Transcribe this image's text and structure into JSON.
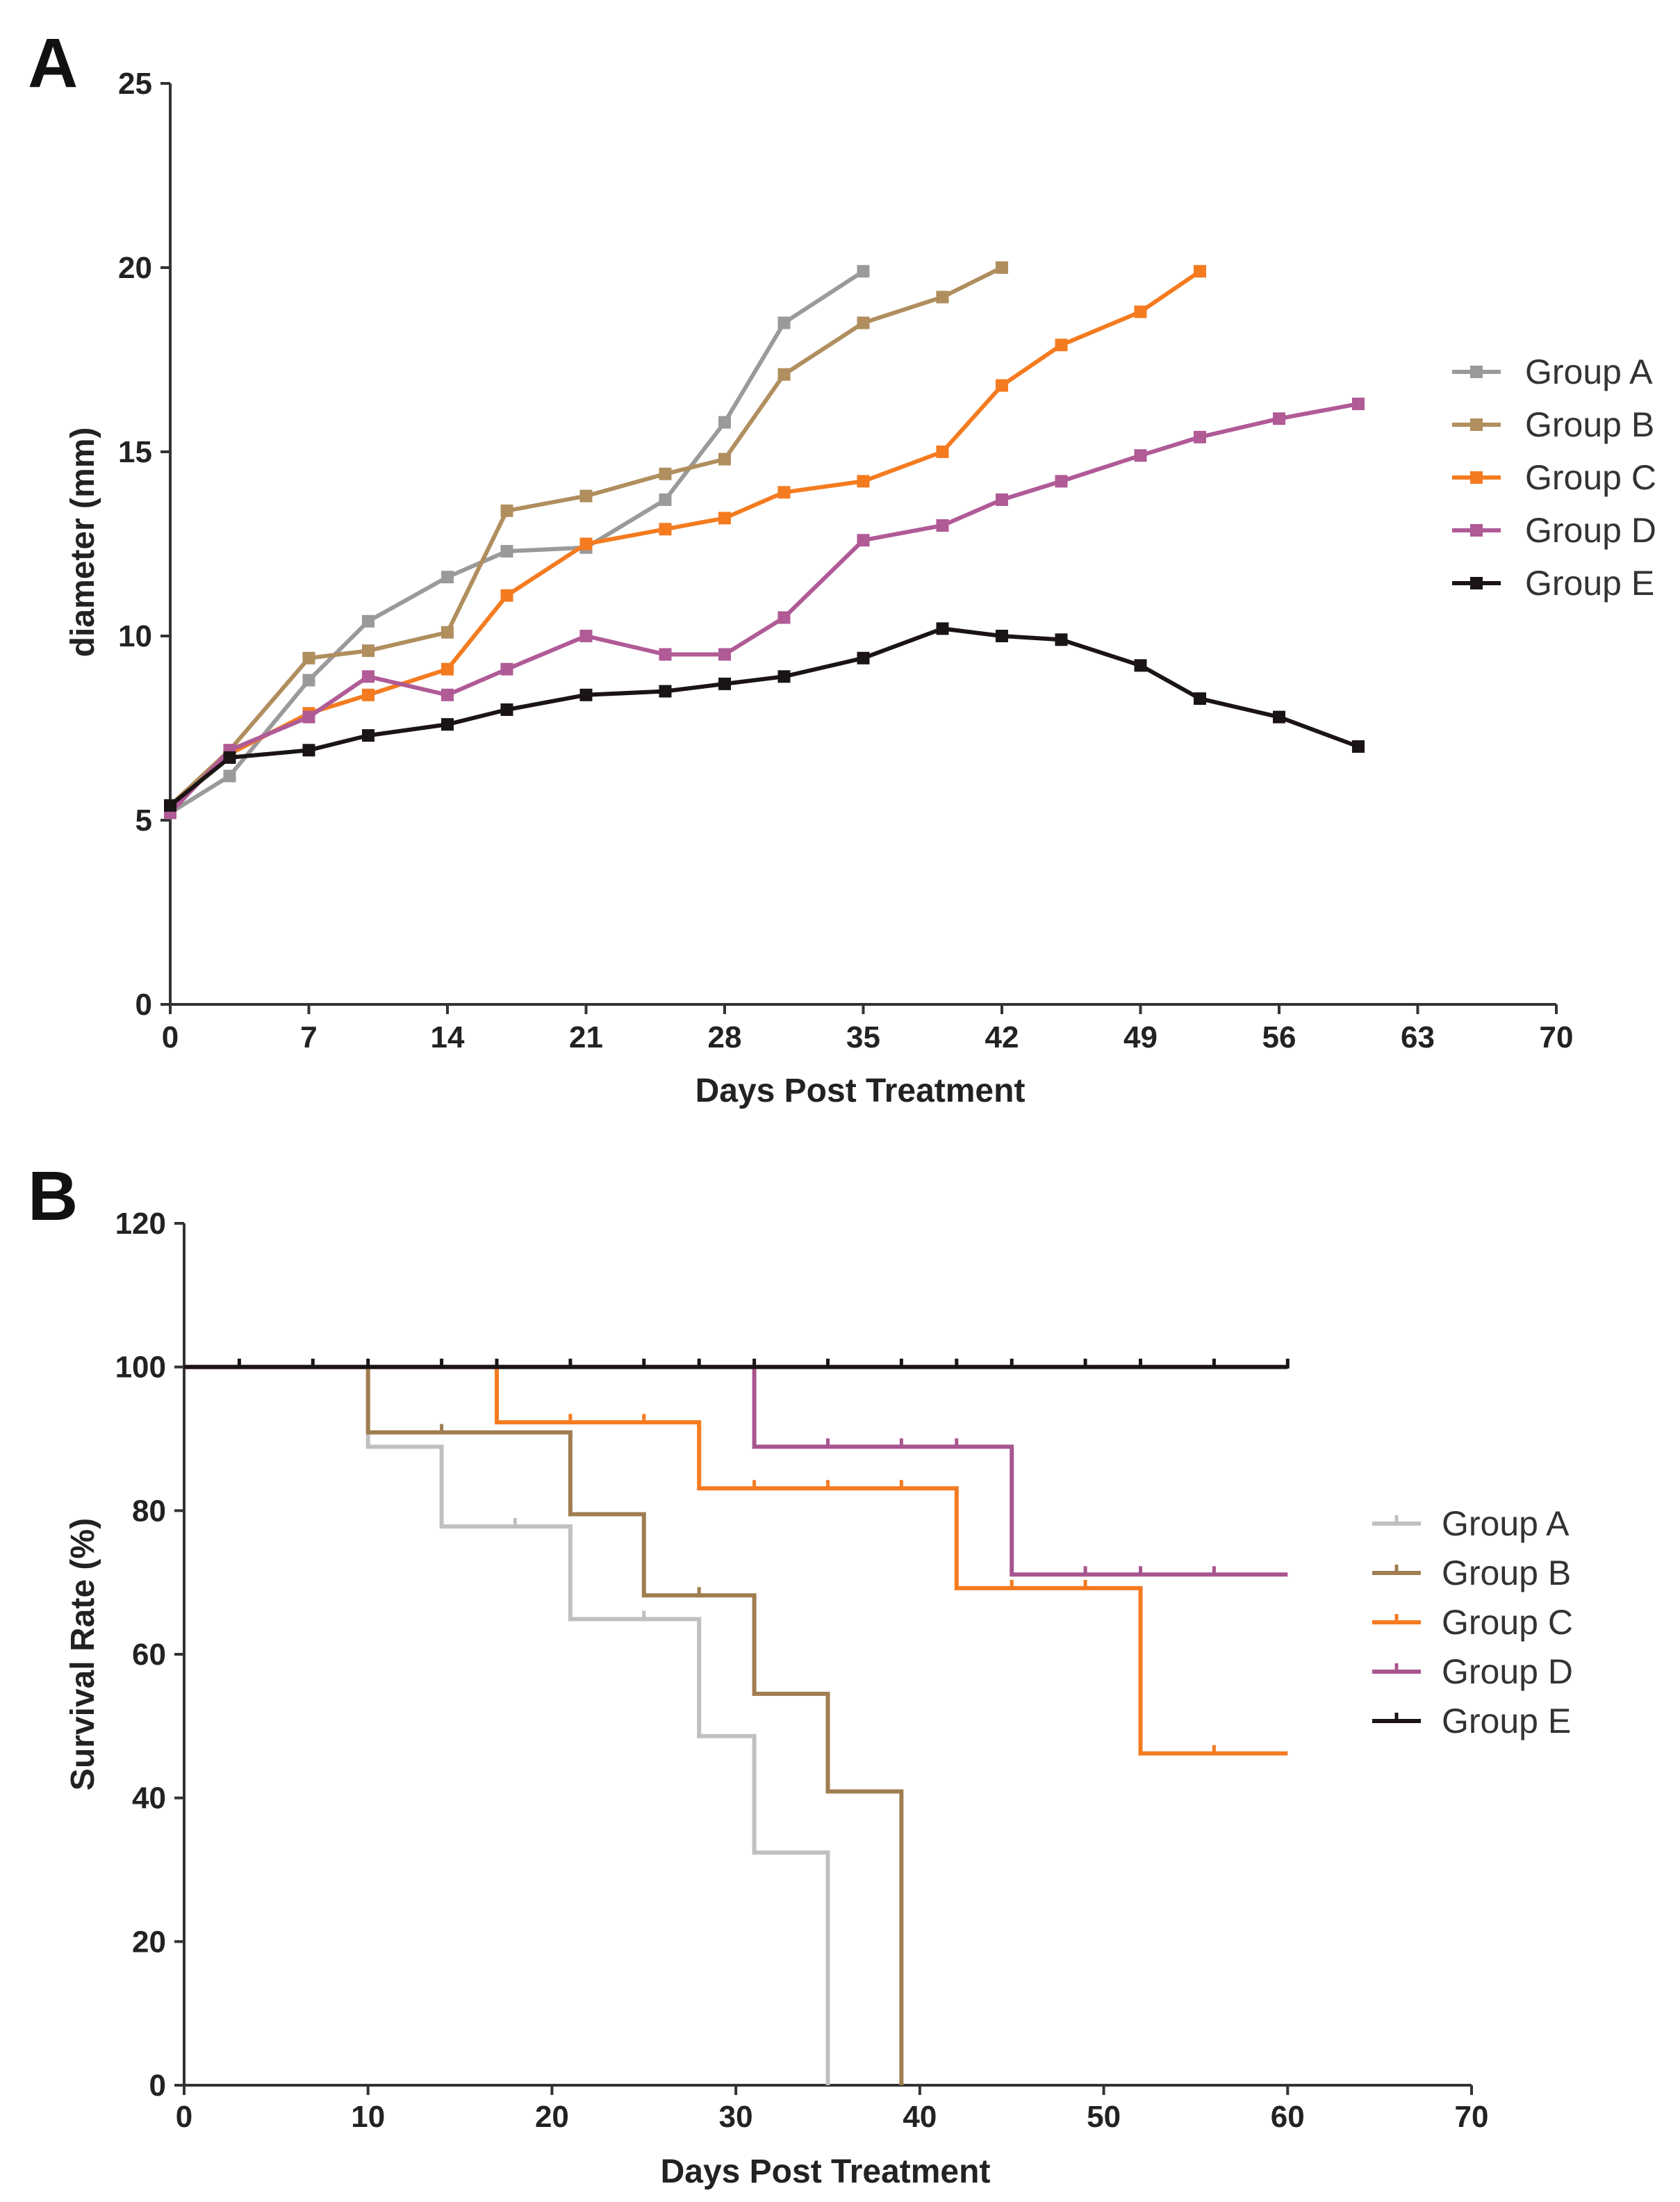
{
  "chart_data": [
    {
      "panel": "A",
      "type": "line",
      "xlabel": "Days Post Treatment",
      "ylabel": "diameter (mm)",
      "xlim": [
        0,
        70
      ],
      "ylim": [
        0,
        25
      ],
      "xticks": [
        "0",
        "7",
        "14",
        "21",
        "28",
        "35",
        "42",
        "49",
        "56",
        "63",
        "70"
      ],
      "yticks": [
        "0",
        "5",
        "10",
        "15",
        "20",
        "25"
      ],
      "legend_position": "right",
      "series": [
        {
          "name": "Group A",
          "color": "#9a9a9a",
          "marker": "square",
          "x": [
            0,
            3,
            7,
            10,
            14,
            17,
            21,
            25,
            28,
            31,
            35
          ],
          "y": [
            5.2,
            6.2,
            8.8,
            10.4,
            11.6,
            12.3,
            12.4,
            13.7,
            15.8,
            18.5,
            19.9
          ]
        },
        {
          "name": "Group B",
          "color": "#b08e5e",
          "marker": "square",
          "x": [
            0,
            3,
            7,
            10,
            14,
            17,
            21,
            25,
            28,
            31,
            35,
            39,
            42
          ],
          "y": [
            5.4,
            6.9,
            9.4,
            9.6,
            10.1,
            13.4,
            13.8,
            14.4,
            14.8,
            17.1,
            18.5,
            19.2,
            20.0
          ]
        },
        {
          "name": "Group C",
          "color": "#f47b20",
          "marker": "square",
          "x": [
            0,
            3,
            7,
            10,
            14,
            17,
            21,
            25,
            28,
            31,
            35,
            39,
            42,
            45,
            49,
            52
          ],
          "y": [
            5.3,
            6.8,
            7.9,
            8.4,
            9.1,
            11.1,
            12.5,
            12.9,
            13.2,
            13.9,
            14.2,
            15.0,
            16.8,
            17.9,
            18.8,
            19.9
          ]
        },
        {
          "name": "Group D",
          "color": "#b05a96",
          "marker": "square",
          "x": [
            0,
            3,
            7,
            10,
            14,
            17,
            21,
            25,
            28,
            31,
            35,
            39,
            42,
            45,
            49,
            52,
            56,
            60
          ],
          "y": [
            5.2,
            6.9,
            7.8,
            8.9,
            8.4,
            9.1,
            10.0,
            9.5,
            9.5,
            10.5,
            12.6,
            13.0,
            13.7,
            14.2,
            14.9,
            15.4,
            15.9,
            16.3
          ]
        },
        {
          "name": "Group E",
          "color": "#1a1414",
          "marker": "square",
          "x": [
            0,
            3,
            7,
            10,
            14,
            17,
            21,
            25,
            28,
            31,
            35,
            39,
            42,
            45,
            49,
            52,
            56,
            60
          ],
          "y": [
            5.4,
            6.7,
            6.9,
            7.3,
            7.6,
            8.0,
            8.4,
            8.5,
            8.7,
            8.9,
            9.4,
            10.2,
            10.0,
            9.9,
            9.2,
            8.3,
            7.8,
            7.0
          ]
        }
      ]
    },
    {
      "panel": "B",
      "type": "step",
      "xlabel": "Days Post Treatment",
      "ylabel": "Survival Rate (%)",
      "xlim": [
        0,
        70
      ],
      "ylim": [
        0,
        120
      ],
      "xticks": [
        "0",
        "10",
        "20",
        "30",
        "40",
        "50",
        "60",
        "70"
      ],
      "yticks": [
        "0",
        "20",
        "40",
        "60",
        "80",
        "100",
        "120"
      ],
      "legend_position": "right",
      "series": [
        {
          "name": "Group A",
          "color": "#c0c0c0",
          "x": [
            0,
            10,
            14,
            21,
            28,
            31,
            35
          ],
          "y": [
            100,
            88.9,
            77.8,
            64.9,
            48.6,
            32.4,
            0
          ],
          "censored": [
            [
              18,
              77.8
            ],
            [
              25,
              64.9
            ]
          ]
        },
        {
          "name": "Group B",
          "color": "#a07d50",
          "x": [
            0,
            10,
            21,
            25,
            31,
            35,
            39
          ],
          "y": [
            100,
            90.9,
            79.5,
            68.2,
            54.5,
            40.9,
            0
          ],
          "censored": [
            [
              14,
              90.9
            ],
            [
              28,
              68.2
            ]
          ]
        },
        {
          "name": "Group C",
          "color": "#f47b20",
          "x": [
            0,
            17,
            28,
            42,
            52,
            60
          ],
          "y": [
            100,
            92.3,
            83.1,
            69.2,
            46.2,
            46.2
          ],
          "censored": [
            [
              21,
              92.3
            ],
            [
              25,
              92.3
            ],
            [
              31,
              83.1
            ],
            [
              35,
              83.1
            ],
            [
              39,
              83.1
            ],
            [
              45,
              69.2
            ],
            [
              49,
              69.2
            ],
            [
              56,
              46.2
            ]
          ]
        },
        {
          "name": "Group D",
          "color": "#a8558f",
          "x": [
            0,
            31,
            45,
            60
          ],
          "y": [
            100,
            88.9,
            71.1,
            71.1
          ],
          "censored": [
            [
              35,
              88.9
            ],
            [
              39,
              88.9
            ],
            [
              42,
              88.9
            ],
            [
              49,
              71.1
            ],
            [
              52,
              71.1
            ],
            [
              56,
              71.1
            ]
          ]
        },
        {
          "name": "Group E",
          "color": "#1a1414",
          "x": [
            0,
            60
          ],
          "y": [
            100,
            100
          ],
          "censored": [
            [
              3,
              100
            ],
            [
              7,
              100
            ],
            [
              10,
              100
            ],
            [
              14,
              100
            ],
            [
              17,
              100
            ],
            [
              21,
              100
            ],
            [
              25,
              100
            ],
            [
              28,
              100
            ],
            [
              31,
              100
            ],
            [
              35,
              100
            ],
            [
              39,
              100
            ],
            [
              42,
              100
            ],
            [
              45,
              100
            ],
            [
              49,
              100
            ],
            [
              52,
              100
            ],
            [
              56,
              100
            ],
            [
              60,
              100
            ]
          ]
        }
      ]
    }
  ]
}
